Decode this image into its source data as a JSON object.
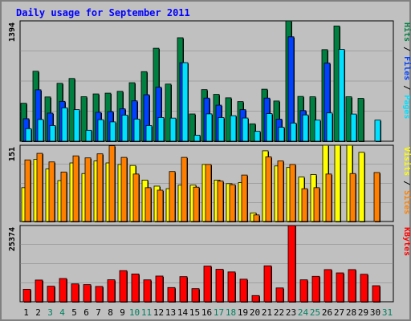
{
  "title": "Daily usage for September 2011",
  "colors": {
    "background": "#c0c0c0",
    "hits": "#008040",
    "files": "#0040ff",
    "pages": "#00e0ff",
    "visits": "#ffff00",
    "sites": "#ff8000",
    "kbytes": "#ff0000",
    "title": "#0000ff"
  },
  "chart_data": [
    {
      "type": "bar",
      "panel": "top",
      "categories": [
        "1",
        "2",
        "3",
        "4",
        "5",
        "6",
        "7",
        "8",
        "9",
        "10",
        "11",
        "12",
        "13",
        "14",
        "15",
        "16",
        "17",
        "18",
        "19",
        "20",
        "21",
        "22",
        "23",
        "24",
        "25",
        "26",
        "27",
        "28",
        "29",
        "30",
        "31"
      ],
      "series": [
        {
          "name": "Hits",
          "values": [
            440,
            811,
            513,
            671,
            727,
            516,
            548,
            557,
            578,
            678,
            806,
            1077,
            662,
            1199,
            316,
            598,
            543,
            503,
            459,
            202,
            603,
            466,
            1394,
            519,
            515,
            1061,
            1335,
            515,
            497,
            0,
            0
          ]
        },
        {
          "name": "Files",
          "values": [
            261,
            596,
            326,
            462,
            0,
            0,
            335,
            344,
            376,
            468,
            539,
            626,
            0,
            910,
            0,
            500,
            418,
            0,
            366,
            0,
            500,
            256,
            1210,
            355,
            0,
            905,
            0,
            0,
            0,
            0,
            0
          ]
        },
        {
          "name": "Pages",
          "values": [
            146,
            252,
            182,
            387,
            366,
            127,
            250,
            224,
            303,
            257,
            182,
            275,
            268,
            910,
            70,
            317,
            274,
            296,
            269,
            115,
            320,
            162,
            211,
            305,
            245,
            328,
            1064,
            315,
            0,
            245,
            0
          ]
        }
      ],
      "y_max_label": "1394",
      "ylabel_parts": [
        "Pages",
        "Files",
        "Hits"
      ]
    },
    {
      "type": "bar",
      "panel": "middle",
      "categories": [
        "1",
        "2",
        "3",
        "4",
        "5",
        "6",
        "7",
        "8",
        "9",
        "10",
        "11",
        "12",
        "13",
        "14",
        "15",
        "16",
        "17",
        "18",
        "19",
        "20",
        "21",
        "22",
        "23",
        "24",
        "25",
        "26",
        "27",
        "28",
        "29",
        "30",
        "31"
      ],
      "series": [
        {
          "name": "Visits",
          "values": [
            67,
            123,
            104,
            81,
            116,
            95,
            120,
            116,
            113,
            111,
            82,
            70,
            65,
            72,
            72,
            113,
            82,
            75,
            77,
            17,
            140,
            110,
            107,
            88,
            93,
            151,
            151,
            151,
            137,
            0,
            0
          ]
        },
        {
          "name": "Sites",
          "values": [
            122,
            135,
            118,
            98,
            130,
            126,
            134,
            150,
            127,
            94,
            67,
            62,
            99,
            127,
            68,
            113,
            80,
            73,
            92,
            13,
            128,
            120,
            113,
            65,
            67,
            94,
            0,
            95,
            0,
            97,
            0
          ]
        }
      ],
      "y_max_label": "151",
      "ylabel_parts": [
        "Sites",
        "Visits"
      ]
    },
    {
      "type": "bar",
      "panel": "bottom",
      "categories": [
        "1",
        "2",
        "3",
        "4",
        "5",
        "6",
        "7",
        "8",
        "9",
        "10",
        "11",
        "12",
        "13",
        "14",
        "15",
        "16",
        "17",
        "18",
        "19",
        "20",
        "21",
        "22",
        "23",
        "24",
        "25",
        "26",
        "27",
        "28",
        "29",
        "30",
        "31"
      ],
      "series": [
        {
          "name": "KBytes",
          "values": [
            4170,
            7230,
            5180,
            7740,
            5950,
            5710,
            5100,
            7320,
            10360,
            9250,
            7290,
            8560,
            4730,
            8370,
            4360,
            11880,
            10810,
            9930,
            7510,
            2060,
            11970,
            4600,
            25374,
            7300,
            8470,
            10710,
            9610,
            10710,
            9150,
            5340,
            0
          ]
        }
      ],
      "y_max_label": "25374",
      "ylabel_parts": [
        "KBytes"
      ]
    }
  ]
}
